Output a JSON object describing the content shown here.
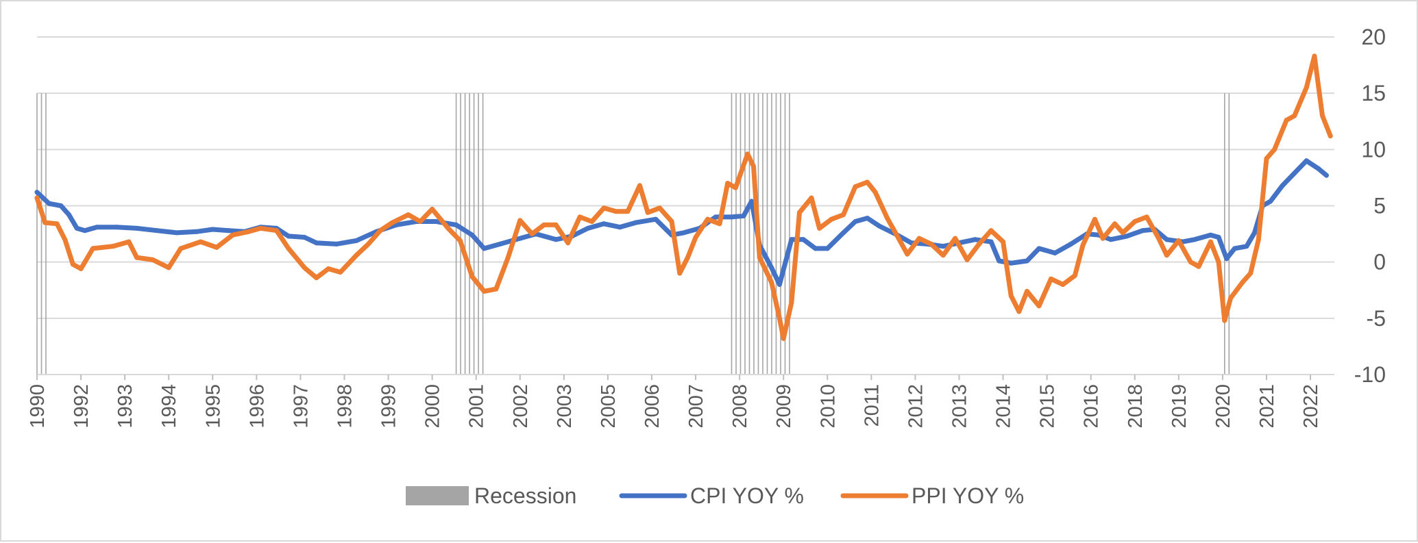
{
  "chart_data": {
    "type": "line",
    "title": "",
    "xlabel": "",
    "ylabel": "",
    "ylim": [
      -10,
      20
    ],
    "y_ticks": [
      20,
      15,
      10,
      5,
      0,
      -5,
      -10
    ],
    "x_range": [
      1990.0,
      2022.5
    ],
    "x_tick_labels": [
      {
        "label": "1990",
        "x": 1990.0
      },
      {
        "label": "1992",
        "x": 1991.1
      },
      {
        "label": "1993",
        "x": 1992.2
      },
      {
        "label": "1994",
        "x": 1993.3
      },
      {
        "label": "1995",
        "x": 1994.4
      },
      {
        "label": "1996",
        "x": 1995.5
      },
      {
        "label": "1997",
        "x": 1996.6
      },
      {
        "label": "1998",
        "x": 1997.7
      },
      {
        "label": "1999",
        "x": 1998.8
      },
      {
        "label": "2000",
        "x": 1999.9
      },
      {
        "label": "2001",
        "x": 2001.0
      },
      {
        "label": "2002",
        "x": 2002.1
      },
      {
        "label": "2003",
        "x": 2003.2
      },
      {
        "label": "2005",
        "x": 2004.3
      },
      {
        "label": "2006",
        "x": 2005.4
      },
      {
        "label": "2007",
        "x": 2006.5
      },
      {
        "label": "2008",
        "x": 2007.6
      },
      {
        "label": "2009",
        "x": 2008.7
      },
      {
        "label": "2010",
        "x": 2009.8
      },
      {
        "label": "2011",
        "x": 2010.9
      },
      {
        "label": "2012",
        "x": 2012.0
      },
      {
        "label": "2013",
        "x": 2013.1
      },
      {
        "label": "2014",
        "x": 2014.2
      },
      {
        "label": "2015",
        "x": 2015.3
      },
      {
        "label": "2016",
        "x": 2016.4
      },
      {
        "label": "2018",
        "x": 2017.5
      },
      {
        "label": "2019",
        "x": 2018.6
      },
      {
        "label": "2020",
        "x": 2019.7
      },
      {
        "label": "2021",
        "x": 2020.8
      },
      {
        "label": "2022",
        "x": 2021.9
      }
    ],
    "recession": {
      "name": "Recession",
      "color": "#a5a5a5",
      "value": 15,
      "periods": [
        [
          1990.0,
          1990.3
        ],
        [
          2000.5,
          2001.2
        ],
        [
          2007.4,
          2008.9
        ],
        [
          2019.75,
          2019.95
        ]
      ]
    },
    "series": [
      {
        "name": "CPI YOY %",
        "color": "#4472c4",
        "points": [
          [
            1990.0,
            6.2
          ],
          [
            1990.3,
            5.2
          ],
          [
            1990.6,
            5.0
          ],
          [
            1990.8,
            4.2
          ],
          [
            1991.0,
            3.0
          ],
          [
            1991.2,
            2.8
          ],
          [
            1991.5,
            3.1
          ],
          [
            1992.0,
            3.1
          ],
          [
            1992.5,
            3.0
          ],
          [
            1993.0,
            2.8
          ],
          [
            1993.5,
            2.6
          ],
          [
            1994.0,
            2.7
          ],
          [
            1994.4,
            2.9
          ],
          [
            1994.8,
            2.8
          ],
          [
            1995.2,
            2.7
          ],
          [
            1995.6,
            3.1
          ],
          [
            1996.0,
            3.0
          ],
          [
            1996.3,
            2.3
          ],
          [
            1996.7,
            2.2
          ],
          [
            1997.0,
            1.7
          ],
          [
            1997.5,
            1.6
          ],
          [
            1998.0,
            1.9
          ],
          [
            1998.5,
            2.7
          ],
          [
            1999.0,
            3.3
          ],
          [
            1999.5,
            3.6
          ],
          [
            2000.0,
            3.6
          ],
          [
            2000.5,
            3.3
          ],
          [
            2000.9,
            2.4
          ],
          [
            2001.2,
            1.2
          ],
          [
            2001.6,
            1.6
          ],
          [
            2002.0,
            2.0
          ],
          [
            2002.5,
            2.5
          ],
          [
            2003.0,
            2.0
          ],
          [
            2003.4,
            2.3
          ],
          [
            2003.8,
            3.0
          ],
          [
            2004.2,
            3.4
          ],
          [
            2004.6,
            3.1
          ],
          [
            2005.0,
            3.5
          ],
          [
            2005.5,
            3.8
          ],
          [
            2005.9,
            2.4
          ],
          [
            2006.2,
            2.6
          ],
          [
            2006.6,
            3.0
          ],
          [
            2007.0,
            4.0
          ],
          [
            2007.4,
            4.0
          ],
          [
            2007.7,
            4.1
          ],
          [
            2007.9,
            5.4
          ],
          [
            2008.1,
            1.5
          ],
          [
            2008.4,
            -0.5
          ],
          [
            2008.6,
            -2.0
          ],
          [
            2008.9,
            2.0
          ],
          [
            2009.2,
            2.0
          ],
          [
            2009.5,
            1.2
          ],
          [
            2009.8,
            1.2
          ],
          [
            2010.2,
            2.6
          ],
          [
            2010.5,
            3.6
          ],
          [
            2010.8,
            3.9
          ],
          [
            2011.1,
            3.2
          ],
          [
            2011.5,
            2.5
          ],
          [
            2011.9,
            1.7
          ],
          [
            2012.3,
            1.6
          ],
          [
            2012.7,
            1.4
          ],
          [
            2013.1,
            1.7
          ],
          [
            2013.5,
            2.0
          ],
          [
            2013.9,
            1.8
          ],
          [
            2014.1,
            0.1
          ],
          [
            2014.4,
            -0.1
          ],
          [
            2014.8,
            0.1
          ],
          [
            2015.1,
            1.2
          ],
          [
            2015.5,
            0.8
          ],
          [
            2015.9,
            1.6
          ],
          [
            2016.3,
            2.5
          ],
          [
            2016.6,
            2.4
          ],
          [
            2016.9,
            2.0
          ],
          [
            2017.3,
            2.3
          ],
          [
            2017.7,
            2.8
          ],
          [
            2018.0,
            2.9
          ],
          [
            2018.3,
            2.0
          ],
          [
            2018.7,
            1.8
          ],
          [
            2019.0,
            2.0
          ],
          [
            2019.4,
            2.4
          ],
          [
            2019.6,
            2.2
          ],
          [
            2019.8,
            0.3
          ],
          [
            2020.0,
            1.2
          ],
          [
            2020.3,
            1.4
          ],
          [
            2020.5,
            2.6
          ],
          [
            2020.7,
            5.0
          ],
          [
            2020.9,
            5.4
          ],
          [
            2021.2,
            6.8
          ],
          [
            2021.5,
            7.9
          ],
          [
            2021.8,
            9.0
          ],
          [
            2022.1,
            8.3
          ],
          [
            2022.3,
            7.7
          ]
        ]
      },
      {
        "name": "PPI YOY %",
        "color": "#ed7d31",
        "points": [
          [
            1990.0,
            5.7
          ],
          [
            1990.2,
            3.5
          ],
          [
            1990.5,
            3.4
          ],
          [
            1990.7,
            2.0
          ],
          [
            1990.9,
            -0.2
          ],
          [
            1991.1,
            -0.6
          ],
          [
            1991.4,
            1.2
          ],
          [
            1991.9,
            1.4
          ],
          [
            1992.3,
            1.8
          ],
          [
            1992.5,
            0.4
          ],
          [
            1992.9,
            0.2
          ],
          [
            1993.3,
            -0.5
          ],
          [
            1993.6,
            1.2
          ],
          [
            1994.1,
            1.8
          ],
          [
            1994.5,
            1.3
          ],
          [
            1994.9,
            2.4
          ],
          [
            1995.3,
            2.7
          ],
          [
            1995.6,
            3.0
          ],
          [
            1996.0,
            2.8
          ],
          [
            1996.3,
            1.2
          ],
          [
            1996.7,
            -0.5
          ],
          [
            1997.0,
            -1.4
          ],
          [
            1997.3,
            -0.6
          ],
          [
            1997.6,
            -0.9
          ],
          [
            1998.0,
            0.6
          ],
          [
            1998.3,
            1.6
          ],
          [
            1998.6,
            2.8
          ],
          [
            1998.9,
            3.5
          ],
          [
            1999.3,
            4.2
          ],
          [
            1999.6,
            3.6
          ],
          [
            1999.9,
            4.7
          ],
          [
            2000.3,
            3.0
          ],
          [
            2000.6,
            1.9
          ],
          [
            2000.9,
            -1.3
          ],
          [
            2001.2,
            -2.6
          ],
          [
            2001.5,
            -2.4
          ],
          [
            2001.8,
            0.4
          ],
          [
            2002.1,
            3.7
          ],
          [
            2002.4,
            2.5
          ],
          [
            2002.7,
            3.3
          ],
          [
            2003.0,
            3.3
          ],
          [
            2003.3,
            1.7
          ],
          [
            2003.6,
            4.0
          ],
          [
            2003.9,
            3.6
          ],
          [
            2004.2,
            4.8
          ],
          [
            2004.5,
            4.5
          ],
          [
            2004.8,
            4.5
          ],
          [
            2005.1,
            6.8
          ],
          [
            2005.3,
            4.4
          ],
          [
            2005.6,
            4.8
          ],
          [
            2005.9,
            3.6
          ],
          [
            2006.1,
            -1.0
          ],
          [
            2006.3,
            0.4
          ],
          [
            2006.5,
            2.2
          ],
          [
            2006.8,
            3.8
          ],
          [
            2007.1,
            3.4
          ],
          [
            2007.3,
            7.0
          ],
          [
            2007.5,
            6.6
          ],
          [
            2007.8,
            9.6
          ],
          [
            2007.95,
            8.5
          ],
          [
            2008.1,
            0.4
          ],
          [
            2008.4,
            -1.8
          ],
          [
            2008.6,
            -5.0
          ],
          [
            2008.7,
            -6.8
          ],
          [
            2008.9,
            -3.6
          ],
          [
            2009.1,
            4.4
          ],
          [
            2009.4,
            5.7
          ],
          [
            2009.6,
            3.0
          ],
          [
            2009.9,
            3.8
          ],
          [
            2010.2,
            4.2
          ],
          [
            2010.5,
            6.7
          ],
          [
            2010.8,
            7.1
          ],
          [
            2011.0,
            6.2
          ],
          [
            2011.3,
            3.9
          ],
          [
            2011.6,
            2.0
          ],
          [
            2011.8,
            0.7
          ],
          [
            2012.1,
            2.1
          ],
          [
            2012.4,
            1.6
          ],
          [
            2012.7,
            0.6
          ],
          [
            2013.0,
            2.1
          ],
          [
            2013.3,
            0.2
          ],
          [
            2013.6,
            1.6
          ],
          [
            2013.9,
            2.8
          ],
          [
            2014.2,
            1.8
          ],
          [
            2014.4,
            -3.0
          ],
          [
            2014.6,
            -4.4
          ],
          [
            2014.8,
            -2.6
          ],
          [
            2015.1,
            -3.9
          ],
          [
            2015.4,
            -1.5
          ],
          [
            2015.7,
            -2.0
          ],
          [
            2016.0,
            -1.2
          ],
          [
            2016.2,
            1.5
          ],
          [
            2016.5,
            3.8
          ],
          [
            2016.7,
            2.1
          ],
          [
            2017.0,
            3.4
          ],
          [
            2017.2,
            2.6
          ],
          [
            2017.5,
            3.6
          ],
          [
            2017.8,
            4.0
          ],
          [
            2018.1,
            2.1
          ],
          [
            2018.3,
            0.6
          ],
          [
            2018.6,
            1.9
          ],
          [
            2018.9,
            0.0
          ],
          [
            2019.1,
            -0.4
          ],
          [
            2019.4,
            1.8
          ],
          [
            2019.6,
            0.0
          ],
          [
            2019.75,
            -5.2
          ],
          [
            2019.9,
            -3.2
          ],
          [
            2020.2,
            -1.8
          ],
          [
            2020.4,
            -1.0
          ],
          [
            2020.6,
            2.0
          ],
          [
            2020.8,
            9.2
          ],
          [
            2021.0,
            10.0
          ],
          [
            2021.3,
            12.6
          ],
          [
            2021.5,
            13.0
          ],
          [
            2021.8,
            15.5
          ],
          [
            2022.0,
            18.3
          ],
          [
            2022.2,
            13.0
          ],
          [
            2022.4,
            11.2
          ]
        ]
      }
    ],
    "legend": {
      "position": "bottom",
      "entries": [
        "Recession",
        "CPI YOY %",
        "PPI YOY %"
      ]
    },
    "grid": true
  }
}
